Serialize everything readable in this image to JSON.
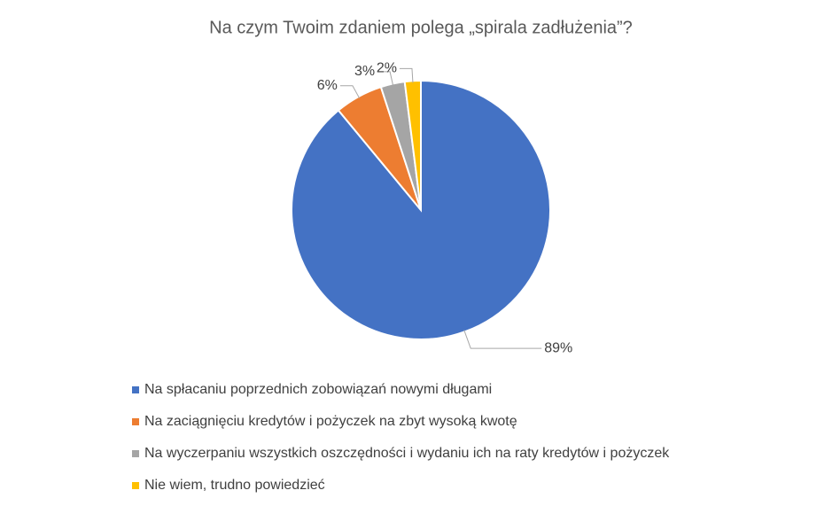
{
  "chart_data": {
    "type": "pie",
    "title": "Na czym Twoim zdaniem polega „spirala zadłużenia”?",
    "categories": [
      "Na spłacaniu poprzednich zobowiązań nowymi długami",
      "Na zaciągnięciu kredytów i pożyczek na zbyt wysoką kwotę",
      "Na wyczerpaniu wszystkich oszczędności i wydaniu ich na raty kredytów i pożyczek",
      "Nie wiem, trudno powiedzieć"
    ],
    "values": [
      89,
      6,
      3,
      2
    ],
    "value_labels": [
      "89%",
      "6%",
      "3%",
      "2%"
    ],
    "colors": [
      "#4472c4",
      "#ed7d31",
      "#a5a5a5",
      "#ffc000"
    ],
    "legend": "bottom-left"
  }
}
